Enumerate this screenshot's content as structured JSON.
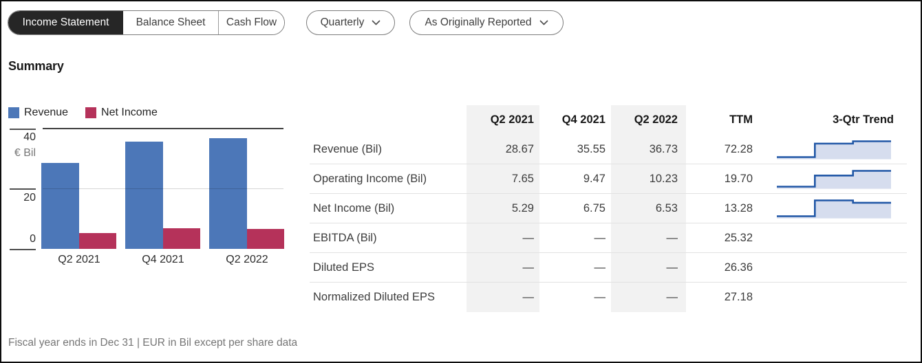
{
  "toolbar": {
    "tabs": [
      {
        "label": "Income Statement",
        "active": true
      },
      {
        "label": "Balance Sheet",
        "active": false
      },
      {
        "label": "Cash Flow",
        "active": false
      }
    ],
    "dropdowns": [
      {
        "label": "Quarterly"
      },
      {
        "label": "As Originally Reported"
      }
    ]
  },
  "section_title": "Summary",
  "chart_data": {
    "type": "bar",
    "title": "Summary",
    "categories": [
      "Q2 2021",
      "Q4 2021",
      "Q2 2022"
    ],
    "series": [
      {
        "name": "Revenue",
        "color": "#4C77B8",
        "values": [
          28.67,
          35.55,
          36.73
        ]
      },
      {
        "name": "Net Income",
        "color": "#B5325A",
        "values": [
          5.29,
          6.75,
          6.53
        ]
      }
    ],
    "ylabel": "€ Bil",
    "yticks": [
      0,
      20,
      40
    ],
    "ylim": [
      0,
      40
    ],
    "legend_position": "top-left",
    "grid": "horizontal"
  },
  "table": {
    "columns": [
      "",
      "Q2 2021",
      "Q4 2021",
      "Q2 2022",
      "TTM",
      "3-Qtr Trend"
    ],
    "highlighted_columns": [
      "Q2 2021",
      "Q2 2022"
    ],
    "rows": [
      {
        "label": "Revenue (Bil)",
        "values": [
          "28.67",
          "35.55",
          "36.73",
          "72.28"
        ],
        "trend": [
          28.67,
          35.55,
          36.73
        ]
      },
      {
        "label": "Operating Income (Bil)",
        "values": [
          "7.65",
          "9.47",
          "10.23",
          "19.70"
        ],
        "trend": [
          7.65,
          9.47,
          10.23
        ]
      },
      {
        "label": "Net Income (Bil)",
        "values": [
          "5.29",
          "6.75",
          "6.53",
          "13.28"
        ],
        "trend": [
          5.29,
          6.75,
          6.53
        ]
      },
      {
        "label": "EBITDA (Bil)",
        "values": [
          "—",
          "—",
          "—",
          "25.32"
        ],
        "trend": null
      },
      {
        "label": "Diluted EPS",
        "values": [
          "—",
          "—",
          "—",
          "26.36"
        ],
        "trend": null
      },
      {
        "label": "Normalized Diluted EPS",
        "values": [
          "—",
          "—",
          "—",
          "27.18"
        ],
        "trend": null
      }
    ]
  },
  "footer": "Fiscal year ends in Dec 31 | EUR in Bil except per share data",
  "colors": {
    "accent_blue": "#4C77B8",
    "accent_crimson": "#B5325A",
    "trend_line": "#2157A6",
    "trend_fill": "#D6DDEE",
    "column_highlight": "#F2F2F2",
    "active_tab_bg": "#262626",
    "grid_line": "#D9D9D9"
  }
}
